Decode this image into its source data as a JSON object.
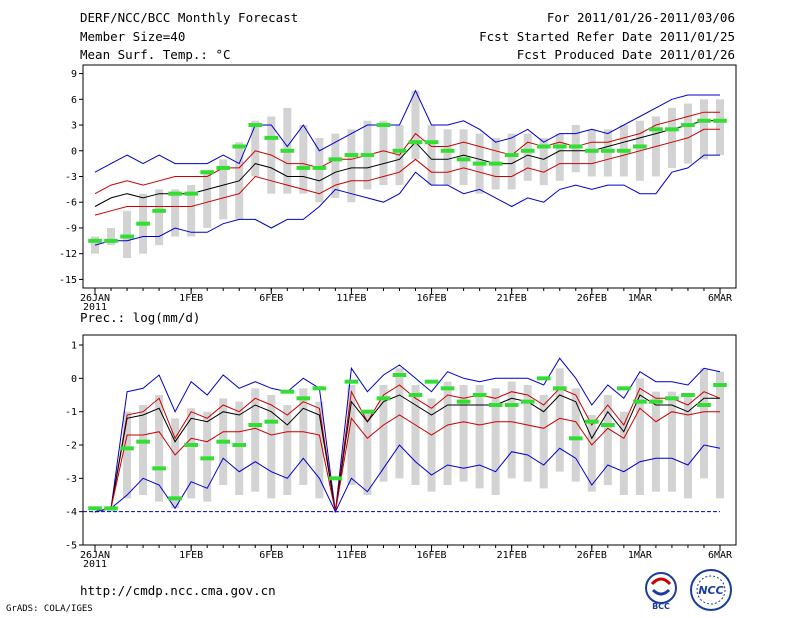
{
  "header": {
    "title": "DERF/NCC/BCC Monthly Forecast",
    "member_size": "Member Size=40",
    "variable": "Mean Surf. Temp.: °C",
    "period": "For 2011/01/26-2011/03/06",
    "refer_date": "Fcst Started Refer Date 2011/01/25",
    "produced_date": "Fcst Produced Date 2011/01/26"
  },
  "footer": {
    "url": "http://cmdp.ncc.cma.gov.cn",
    "grads": "GrADS: COLA/IGES",
    "logo_bcc": "BCC",
    "logo_ncc": "NCC"
  },
  "colors": {
    "max_line": "#0000cc",
    "mean_line": "#000000",
    "spread_line": "#cc0000",
    "box": "#d3d3d3",
    "observed": "#33dd33"
  },
  "chart_data": [
    {
      "type": "line",
      "title": "Mean Surf. Temp.: °C",
      "xlabel": "",
      "ylabel": "",
      "ylim": [
        -16,
        10
      ],
      "yticks": [
        -15,
        -12,
        -9,
        -6,
        -3,
        0,
        3,
        6,
        9
      ],
      "x_tick_labels": [
        "26JAN\n2011",
        "1FEB",
        "6FEB",
        "11FEB",
        "16FEB",
        "21FEB",
        "26FEB",
        "1MAR",
        "6MAR"
      ],
      "x_tick_days": [
        0,
        6,
        11,
        16,
        21,
        26,
        31,
        34,
        39
      ],
      "n_days": 40,
      "series": [
        {
          "name": "max",
          "values": [
            -2.5,
            -1.5,
            -0.5,
            -1.5,
            -0.5,
            -1.5,
            -1.5,
            -1.5,
            -0.5,
            -1.5,
            3,
            3,
            0.5,
            3,
            0,
            1,
            2,
            3,
            3,
            3,
            7,
            3,
            3,
            3.5,
            2.5,
            1,
            1.5,
            2.5,
            1,
            2,
            2,
            2.5,
            2,
            3,
            4,
            5,
            6,
            6.5,
            6.5,
            6.5
          ]
        },
        {
          "name": "upper",
          "values": [
            -5,
            -4,
            -3.5,
            -4,
            -3.5,
            -3,
            -3,
            -3,
            -2,
            -2,
            0,
            -0.5,
            -1.5,
            -1.5,
            -2,
            -1,
            -1,
            -0.5,
            0,
            -0.5,
            2,
            0.5,
            0.5,
            1,
            0.5,
            0,
            -0.5,
            1,
            0.5,
            1,
            0.5,
            1,
            1,
            1.5,
            2,
            3,
            3.5,
            4,
            4.5,
            4.5
          ]
        },
        {
          "name": "mean",
          "values": [
            -6.5,
            -5.5,
            -5,
            -5.5,
            -5,
            -5,
            -5,
            -4.5,
            -4,
            -3.5,
            -1.5,
            -2,
            -3,
            -3,
            -3.5,
            -2.5,
            -2,
            -2,
            -1.5,
            -1,
            1,
            -1,
            -1,
            -0.5,
            -1,
            -1.5,
            -1.5,
            -0.5,
            -1,
            0,
            0,
            0,
            0.5,
            1,
            1.5,
            2,
            2.5,
            3,
            3.5,
            3.5
          ]
        },
        {
          "name": "lower",
          "values": [
            -7.5,
            -7,
            -6.5,
            -6.5,
            -6.5,
            -6.5,
            -6.5,
            -6,
            -5.5,
            -5,
            -3,
            -3.5,
            -4,
            -4.5,
            -5,
            -4,
            -3.5,
            -3.5,
            -3,
            -2.5,
            -1,
            -2.5,
            -2.5,
            -2,
            -2.5,
            -3,
            -3,
            -2,
            -2.5,
            -1.5,
            -1.5,
            -1.5,
            -1,
            -0.5,
            0,
            0.5,
            1,
            1.5,
            2.5,
            2.5
          ]
        },
        {
          "name": "min",
          "values": [
            -11,
            -10.5,
            -10.5,
            -10,
            -10,
            -9,
            -9.5,
            -9.5,
            -8.5,
            -8,
            -8,
            -9,
            -8,
            -8,
            -6.5,
            -4.5,
            -5,
            -5.5,
            -6,
            -5,
            -2.5,
            -4,
            -4,
            -5,
            -4.5,
            -5.5,
            -6.5,
            -5.5,
            -6,
            -4.5,
            -4,
            -4.5,
            -4,
            -4,
            -5,
            -5,
            -2.5,
            -2,
            -0.5,
            -0.5
          ]
        }
      ],
      "box_low": [
        -12,
        -11,
        -12.5,
        -12,
        -11,
        -10,
        -10,
        -9,
        -8,
        -8,
        -3,
        -5,
        -5,
        -5,
        -6,
        -5.5,
        -6,
        -4.5,
        -4,
        -4,
        -1,
        -4,
        -4,
        -4,
        -5,
        -4.5,
        -4.5,
        -3.5,
        -4,
        -3.5,
        -2.5,
        -3,
        -3,
        -3,
        -3.5,
        -3,
        -2,
        -1.5,
        -1,
        -0.5
      ],
      "box_high": [
        -10,
        -9,
        -7,
        -5,
        -4.5,
        -4.5,
        -4,
        -2.5,
        -1,
        1,
        3.5,
        4,
        5,
        3,
        1.5,
        2,
        2.5,
        3.5,
        3.5,
        3,
        7,
        3,
        2.5,
        2.5,
        2,
        1.5,
        2,
        2,
        1.5,
        2,
        3,
        2.5,
        2.5,
        3,
        3.5,
        4,
        5,
        5.5,
        6,
        6
      ],
      "observed": [
        -10.5,
        -10.5,
        -10,
        -8.5,
        -7,
        -5,
        -5,
        -2.5,
        -2,
        0.5,
        3,
        1.5,
        0,
        -2,
        -2,
        -1,
        -0.5,
        -0.5,
        3,
        0,
        1,
        1,
        0,
        -1,
        -1.5,
        -1.5,
        -0.5,
        0,
        0.5,
        0.5,
        0.5,
        0,
        0,
        0,
        0.5,
        2.5,
        2.5,
        3,
        3.5,
        3.5
      ]
    },
    {
      "type": "line",
      "title": "Prec.: log(mm/d)",
      "xlabel": "",
      "ylabel": "",
      "ylim": [
        -5,
        1.3
      ],
      "yticks": [
        -5,
        -4,
        -3,
        -2,
        -1,
        0,
        1
      ],
      "x_tick_labels": [
        "26JAN\n2011",
        "1FEB",
        "6FEB",
        "11FEB",
        "16FEB",
        "21FEB",
        "26FEB",
        "1MAR",
        "6MAR"
      ],
      "x_tick_days": [
        0,
        6,
        11,
        16,
        21,
        26,
        31,
        34,
        39
      ],
      "n_days": 40,
      "series": [
        {
          "name": "max",
          "values": [
            -4,
            -3.9,
            -0.4,
            -0.3,
            0.1,
            -1,
            -0.1,
            -0.5,
            0.1,
            -0.3,
            -0.1,
            -0.3,
            -0.4,
            0,
            -0.3,
            -4,
            0.3,
            -0.4,
            0.1,
            0.4,
            0,
            -0.4,
            0.2,
            0,
            -0.1,
            0,
            0,
            0,
            -0.2,
            0.6,
            0,
            -0.8,
            -0.2,
            -0.6,
            0.2,
            -0.1,
            -0.1,
            -0.2,
            0.3,
            0.2
          ]
        },
        {
          "name": "upper",
          "values": [
            -4,
            -3.9,
            -1.1,
            -1,
            -0.6,
            -1.8,
            -1,
            -1.2,
            -0.8,
            -1,
            -0.6,
            -0.8,
            -1.1,
            -0.7,
            -0.9,
            -4,
            -0.4,
            -1.3,
            -0.5,
            -0.2,
            -0.6,
            -0.9,
            -0.5,
            -0.6,
            -0.5,
            -0.6,
            -0.4,
            -0.5,
            -0.8,
            -0.3,
            -0.5,
            -1.4,
            -0.8,
            -1.4,
            -0.3,
            -0.6,
            -0.6,
            -0.8,
            -0.4,
            -0.6
          ]
        },
        {
          "name": "mean",
          "values": [
            -4,
            -3.9,
            -1.2,
            -1.1,
            -0.9,
            -1.9,
            -1.2,
            -1.3,
            -1,
            -1.1,
            -0.8,
            -1,
            -1.4,
            -0.9,
            -1.1,
            -4,
            -0.7,
            -1.3,
            -0.7,
            -0.5,
            -0.8,
            -1.1,
            -0.8,
            -0.8,
            -0.8,
            -0.8,
            -0.6,
            -0.7,
            -1,
            -0.5,
            -0.7,
            -1.8,
            -1,
            -1.6,
            -0.5,
            -0.8,
            -0.8,
            -1,
            -0.6,
            -0.6
          ]
        },
        {
          "name": "lower",
          "values": [
            -4,
            -3.9,
            -1.7,
            -1.7,
            -1.6,
            -2.3,
            -1.8,
            -1.9,
            -1.6,
            -1.6,
            -1.5,
            -1.7,
            -1.6,
            -1.6,
            -1.7,
            -4,
            -1.2,
            -1.8,
            -1.4,
            -1.1,
            -1.4,
            -1.7,
            -1.4,
            -1.3,
            -1.4,
            -1.3,
            -1.3,
            -1.4,
            -1.5,
            -1.2,
            -1.3,
            -2,
            -1.5,
            -1.8,
            -0.9,
            -1.3,
            -1,
            -1.1,
            -1,
            -1
          ]
        },
        {
          "name": "min",
          "values": [
            -4,
            -3.9,
            -3.5,
            -3,
            -3.2,
            -3.9,
            -3.1,
            -3.3,
            -2.4,
            -2.8,
            -2.5,
            -2.8,
            -3,
            -2.4,
            -3,
            -4,
            -3,
            -3.4,
            -2.7,
            -2,
            -2.5,
            -2.9,
            -2.6,
            -2.7,
            -2.6,
            -2.8,
            -2.2,
            -2.3,
            -2.6,
            -2.1,
            -2.4,
            -3.2,
            -2.6,
            -2.8,
            -2.5,
            -2.4,
            -2.4,
            -2.6,
            -2,
            -2.1
          ]
        }
      ],
      "baseline": -4,
      "box_low": [
        -4,
        -4,
        -3.6,
        -3.5,
        -3.7,
        -3.9,
        -3.6,
        -3.7,
        -3.2,
        -3.5,
        -3.4,
        -3.6,
        -3.5,
        -3.2,
        -3.6,
        -4,
        -3.2,
        -3.5,
        -3.1,
        -3,
        -3.2,
        -3.4,
        -3.2,
        -3.1,
        -3.3,
        -3.5,
        -3,
        -3.1,
        -3.3,
        -2.8,
        -3.1,
        -3.4,
        -3.2,
        -3.5,
        -3.5,
        -3.4,
        -3.4,
        -3.6,
        -3,
        -3.6
      ],
      "box_high": [
        -4,
        -3.9,
        -1,
        -0.8,
        -0.5,
        -1.2,
        -0.9,
        -1,
        -0.6,
        -0.7,
        -0.3,
        -0.5,
        -0.8,
        -0.3,
        -0.7,
        -4,
        -0.2,
        -1,
        -0.2,
        0.3,
        -0.2,
        -0.6,
        -0.1,
        -0.2,
        -0.2,
        -0.3,
        -0.1,
        -0.2,
        -0.5,
        0.3,
        -0.3,
        -1.1,
        -0.5,
        -1,
        0,
        -0.4,
        -0.4,
        -0.5,
        0.3,
        0.2
      ],
      "observed": [
        -3.9,
        -3.9,
        -2.1,
        -1.9,
        -2.7,
        -3.6,
        -2,
        -2.4,
        -1.9,
        -2,
        -1.4,
        -1.3,
        -0.4,
        -0.6,
        -0.3,
        -3,
        -0.1,
        -1,
        -0.6,
        0.1,
        -0.5,
        -0.1,
        -0.3,
        -0.7,
        -0.5,
        -0.8,
        -0.8,
        -0.7,
        0,
        -0.3,
        -1.8,
        -1.3,
        -1.4,
        -0.3,
        -0.7,
        -0.7,
        -0.6,
        -0.5,
        -0.8,
        -0.2
      ]
    }
  ]
}
